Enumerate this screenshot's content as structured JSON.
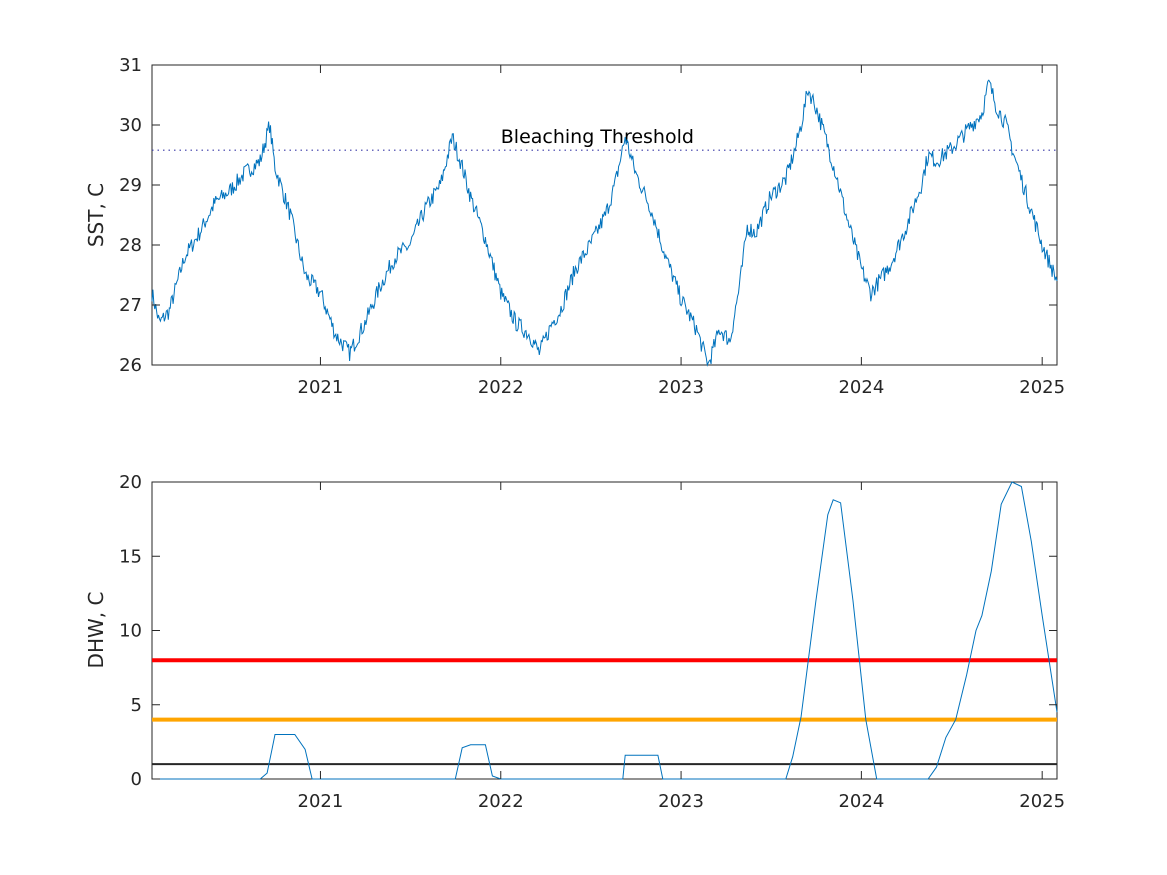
{
  "chart_data": [
    {
      "type": "line",
      "ylabel": "SST, C",
      "ylim": [
        26,
        31
      ],
      "yticks": [
        26,
        27,
        28,
        29,
        30,
        31
      ],
      "xlim": [
        "2020-01-26",
        "2025-01-31"
      ],
      "xticks": [
        "2021",
        "2022",
        "2023",
        "2024",
        "2025"
      ],
      "grid": false,
      "threshold": {
        "label": "Bleaching Threshold",
        "value": 29.58,
        "style": "dotted",
        "color": "#3a3aa8"
      },
      "series": [
        {
          "color": "#0072bd",
          "points": [
            [
              "2020-01-26",
              27.2
            ],
            [
              "2020-02-10",
              26.7
            ],
            [
              "2020-03-01",
              26.9
            ],
            [
              "2020-04-01",
              27.8
            ],
            [
              "2020-05-01",
              28.2
            ],
            [
              "2020-06-01",
              28.7
            ],
            [
              "2020-07-01",
              28.9
            ],
            [
              "2020-08-01",
              29.2
            ],
            [
              "2020-09-01",
              29.4
            ],
            [
              "2020-09-20",
              30.0
            ],
            [
              "2020-10-01",
              29.3
            ],
            [
              "2020-11-01",
              28.5
            ],
            [
              "2020-12-01",
              27.5
            ],
            [
              "2021-01-01",
              27.2
            ],
            [
              "2021-02-01",
              26.5
            ],
            [
              "2021-03-01",
              26.2
            ],
            [
              "2021-04-01",
              26.7
            ],
            [
              "2021-05-01",
              27.3
            ],
            [
              "2021-06-01",
              27.8
            ],
            [
              "2021-07-01",
              28.0
            ],
            [
              "2021-08-01",
              28.6
            ],
            [
              "2021-09-01",
              29.0
            ],
            [
              "2021-09-25",
              29.8
            ],
            [
              "2021-10-15",
              29.3
            ],
            [
              "2021-11-01",
              28.8
            ],
            [
              "2021-12-01",
              28.1
            ],
            [
              "2022-01-01",
              27.2
            ],
            [
              "2022-02-01",
              26.7
            ],
            [
              "2022-03-01",
              26.5
            ],
            [
              "2022-03-20",
              26.2
            ],
            [
              "2022-04-15",
              26.7
            ],
            [
              "2022-05-01",
              26.9
            ],
            [
              "2022-06-01",
              27.6
            ],
            [
              "2022-07-01",
              28.0
            ],
            [
              "2022-08-01",
              28.5
            ],
            [
              "2022-08-20",
              29.0
            ],
            [
              "2022-09-10",
              29.8
            ],
            [
              "2022-10-01",
              29.2
            ],
            [
              "2022-11-01",
              28.6
            ],
            [
              "2022-12-01",
              27.8
            ],
            [
              "2023-01-01",
              27.1
            ],
            [
              "2023-02-01",
              26.6
            ],
            [
              "2023-02-25",
              26.0
            ],
            [
              "2023-03-20",
              26.6
            ],
            [
              "2023-04-10",
              26.4
            ],
            [
              "2023-05-01",
              27.4
            ],
            [
              "2023-05-15",
              28.3
            ],
            [
              "2023-06-01",
              28.2
            ],
            [
              "2023-07-01",
              28.8
            ],
            [
              "2023-08-01",
              29.1
            ],
            [
              "2023-08-20",
              29.6
            ],
            [
              "2023-09-01",
              30.0
            ],
            [
              "2023-09-15",
              30.6
            ],
            [
              "2023-10-01",
              30.3
            ],
            [
              "2023-10-20",
              29.8
            ],
            [
              "2023-11-10",
              29.2
            ],
            [
              "2023-12-01",
              28.5
            ],
            [
              "2024-01-01",
              27.6
            ],
            [
              "2024-01-20",
              27.2
            ],
            [
              "2024-02-15",
              27.5
            ],
            [
              "2024-03-01",
              27.7
            ],
            [
              "2024-04-01",
              28.3
            ],
            [
              "2024-05-01",
              29.0
            ],
            [
              "2024-05-15",
              29.5
            ],
            [
              "2024-06-01",
              29.4
            ],
            [
              "2024-07-01",
              29.6
            ],
            [
              "2024-08-01",
              29.9
            ],
            [
              "2024-09-01",
              30.2
            ],
            [
              "2024-09-15",
              30.7
            ],
            [
              "2024-10-01",
              30.3
            ],
            [
              "2024-10-20",
              30.0
            ],
            [
              "2024-11-05",
              29.5
            ],
            [
              "2024-12-01",
              28.8
            ],
            [
              "2025-01-01",
              28.0
            ],
            [
              "2025-01-31",
              27.4
            ]
          ]
        }
      ]
    },
    {
      "type": "line",
      "ylabel": "DHW, C",
      "ylim": [
        0,
        20
      ],
      "yticks": [
        0,
        5,
        10,
        15,
        20
      ],
      "xlim": [
        "2020-01-26",
        "2025-01-31"
      ],
      "xticks": [
        "2021",
        "2022",
        "2023",
        "2024",
        "2025"
      ],
      "grid": false,
      "reference_lines": [
        {
          "value": 8,
          "color": "#ff0000"
        },
        {
          "value": 4,
          "color": "#ffa500"
        },
        {
          "value": 1,
          "color": "#262626"
        }
      ],
      "series": [
        {
          "color": "#0072bd",
          "points": [
            [
              "2020-01-26",
              0
            ],
            [
              "2020-09-01",
              0
            ],
            [
              "2020-09-15",
              0.4
            ],
            [
              "2020-09-25",
              2.0
            ],
            [
              "2020-10-01",
              3.0
            ],
            [
              "2020-11-10",
              3.0
            ],
            [
              "2020-12-01",
              2.0
            ],
            [
              "2020-12-15",
              0
            ],
            [
              "2021-10-01",
              0
            ],
            [
              "2021-10-15",
              2.1
            ],
            [
              "2021-11-01",
              2.3
            ],
            [
              "2021-12-01",
              2.3
            ],
            [
              "2021-12-15",
              0.2
            ],
            [
              "2022-01-01",
              0
            ],
            [
              "2022-09-05",
              0
            ],
            [
              "2022-09-10",
              1.6
            ],
            [
              "2022-11-15",
              1.6
            ],
            [
              "2022-11-25",
              0
            ],
            [
              "2023-08-01",
              0
            ],
            [
              "2023-08-15",
              1.5
            ],
            [
              "2023-09-01",
              4.2
            ],
            [
              "2023-10-01",
              12.0
            ],
            [
              "2023-10-25",
              17.8
            ],
            [
              "2023-11-05",
              18.8
            ],
            [
              "2023-11-20",
              18.6
            ],
            [
              "2023-12-15",
              12.0
            ],
            [
              "2024-01-10",
              4.0
            ],
            [
              "2024-02-01",
              0
            ],
            [
              "2024-05-15",
              0
            ],
            [
              "2024-06-01",
              0.8
            ],
            [
              "2024-06-20",
              2.8
            ],
            [
              "2024-07-10",
              4.0
            ],
            [
              "2024-08-01",
              7.0
            ],
            [
              "2024-08-20",
              10.0
            ],
            [
              "2024-09-01",
              11.0
            ],
            [
              "2024-09-20",
              14.0
            ],
            [
              "2024-10-10",
              18.5
            ],
            [
              "2024-11-01",
              20.0
            ],
            [
              "2024-11-20",
              19.7
            ],
            [
              "2024-12-10",
              16.0
            ],
            [
              "2025-01-01",
              11.0
            ],
            [
              "2025-01-31",
              4.5
            ]
          ]
        }
      ]
    }
  ]
}
